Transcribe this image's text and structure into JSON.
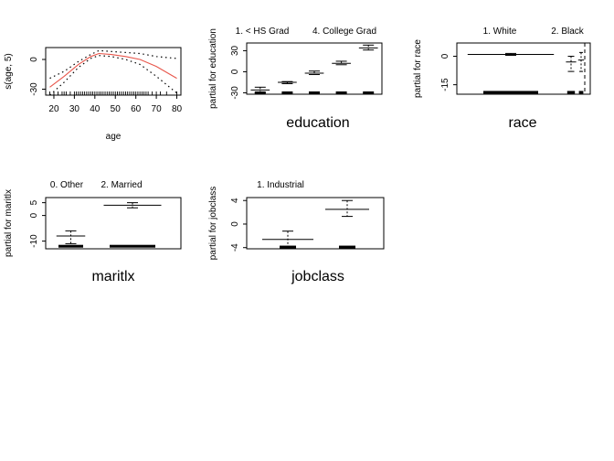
{
  "chart_data": [
    {
      "type": "line",
      "panel": "age",
      "xlabel": "age",
      "ylabel": "s(age, 5)",
      "xticks": [
        20,
        30,
        40,
        50,
        60,
        70,
        80
      ],
      "yticks": [
        -30,
        0
      ],
      "xlim": [
        16,
        82
      ],
      "ylim": [
        -36,
        12
      ],
      "series": [
        {
          "role": "fit",
          "x": [
            18,
            25,
            32,
            38,
            42,
            48,
            55,
            62,
            70,
            80
          ],
          "y": [
            -28,
            -17,
            -5,
            3,
            6,
            5,
            3,
            0,
            -7,
            -19
          ]
        },
        {
          "role": "upper",
          "x": [
            18,
            25,
            32,
            38,
            42,
            48,
            55,
            62,
            70,
            80
          ],
          "y": [
            -19,
            -12,
            -2,
            5,
            9,
            8,
            7,
            6,
            3,
            1
          ]
        },
        {
          "role": "lower",
          "x": [
            18,
            25,
            32,
            38,
            42,
            48,
            55,
            62,
            70,
            80
          ],
          "y": [
            -36,
            -23,
            -8,
            1,
            4,
            3,
            0,
            -5,
            -17,
            -34
          ]
        }
      ],
      "rug": [
        18,
        20,
        22,
        24,
        25,
        26,
        28,
        30,
        31,
        32,
        33,
        34,
        35,
        36,
        37,
        38,
        39,
        40,
        41,
        42,
        43,
        44,
        45,
        46,
        47,
        48,
        49,
        50,
        51,
        52,
        53,
        54,
        55,
        56,
        57,
        58,
        59,
        60,
        61,
        62,
        63,
        64,
        65,
        66,
        68,
        70,
        72,
        75,
        80
      ],
      "colors": {
        "fit": "#e8564b",
        "bands": "#000000"
      }
    },
    {
      "type": "bar",
      "panel": "education",
      "xlabel": "education",
      "ylabel": "partial for education",
      "top_labels": [
        "1. < HS Grad",
        "4. College Grad"
      ],
      "yticks": [
        -30,
        0,
        30
      ],
      "ylim": [
        -32,
        41
      ],
      "categories": [
        "1",
        "2",
        "3",
        "4",
        "5"
      ],
      "values": [
        -26,
        -15,
        -2,
        12,
        34
      ],
      "se_upper": [
        -22,
        -14,
        1,
        15,
        38
      ],
      "se_lower": [
        -30,
        -17,
        -4,
        10,
        31
      ],
      "rug_values": [
        -30,
        -30,
        -30,
        -30,
        -30
      ]
    },
    {
      "type": "bar",
      "panel": "race",
      "xlabel": "race",
      "ylabel": "partial for race",
      "top_labels": [
        "1. White",
        "2. Black"
      ],
      "yticks": [
        -15,
        0
      ],
      "ylim": [
        -20,
        7
      ],
      "categories": [
        "1",
        "2",
        "3"
      ],
      "values": [
        1,
        -3,
        -2
      ],
      "se_upper": [
        1.5,
        0,
        2
      ],
      "se_lower": [
        0.5,
        -8,
        -8
      ],
      "rug_values": [
        -19,
        -19,
        -19
      ]
    },
    {
      "type": "bar",
      "panel": "maritl",
      "xlabel": "maritlx",
      "ylabel": "partial for maritlx",
      "top_labels": [
        "0. Other",
        "2. Married"
      ],
      "yticks": [
        -10,
        0,
        5
      ],
      "ylim": [
        -13,
        7
      ],
      "categories": [
        "0",
        "2"
      ],
      "values": [
        -8,
        4
      ],
      "se_upper": [
        -6,
        5
      ],
      "se_lower": [
        -11,
        3
      ],
      "rug_values": [
        -12,
        -12
      ]
    },
    {
      "type": "bar",
      "panel": "jobclass",
      "xlabel": "jobclass",
      "ylabel": "partial for jobclass",
      "top_labels": [
        "1. Industrial"
      ],
      "yticks": [
        -4,
        0,
        4
      ],
      "ylim": [
        -4.2,
        4.5
      ],
      "categories": [
        "1",
        "2"
      ],
      "values": [
        -2.6,
        2.5
      ],
      "se_upper": [
        -1.2,
        4
      ],
      "se_lower": [
        -3.8,
        1.3
      ],
      "rug_values": [
        -3.9,
        -3.9
      ]
    }
  ]
}
